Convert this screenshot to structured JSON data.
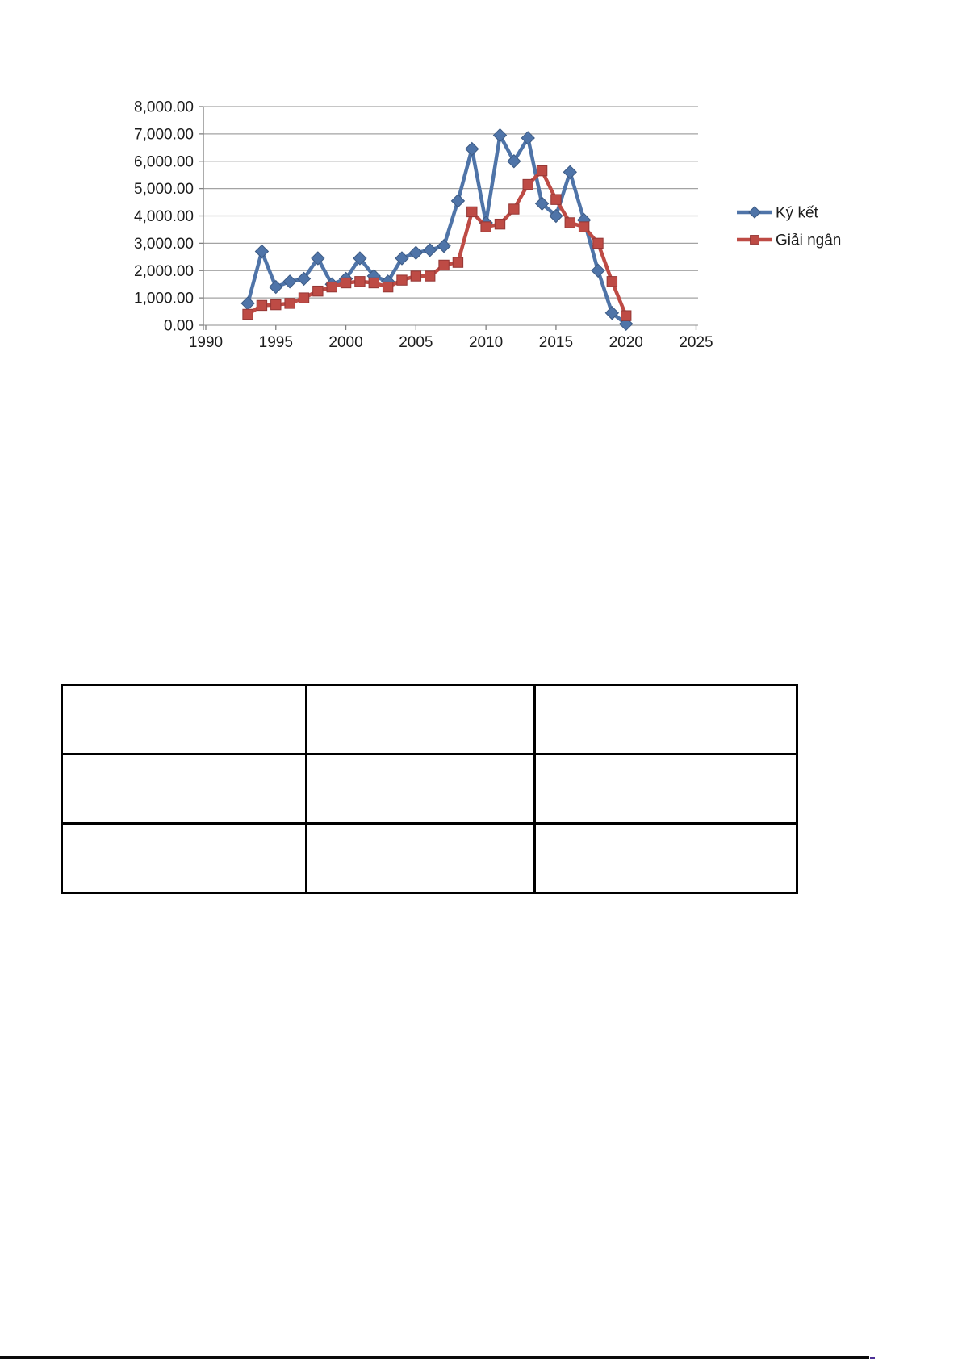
{
  "chart_data": {
    "type": "line",
    "title": "",
    "xlabel": "",
    "ylabel": "",
    "xlim": [
      1990,
      2025
    ],
    "ylim": [
      0,
      8000
    ],
    "grid": true,
    "legend_position": "right",
    "x_ticks": [
      1990,
      1995,
      2000,
      2005,
      2010,
      2015,
      2020,
      2025
    ],
    "y_tick_labels": [
      "8,000.00",
      "7,000.00",
      "6,000.00",
      "5,000.00",
      "4,000.00",
      "3,000.00",
      "2,000.00",
      "1,000.00",
      "0.00"
    ],
    "x_years": [
      1993,
      1994,
      1995,
      1996,
      1997,
      1998,
      1999,
      2000,
      2001,
      2002,
      2003,
      2004,
      2005,
      2006,
      2007,
      2008,
      2009,
      2010,
      2011,
      2012,
      2013,
      2014,
      2015,
      2016,
      2017,
      2018,
      2019,
      2020
    ],
    "series": [
      {
        "name": "Ký kết",
        "marker": "diamond",
        "color": "#4f74a8",
        "edge": "#3c5a84",
        "values": [
          800,
          2700,
          1400,
          1600,
          1700,
          2450,
          1500,
          1700,
          2450,
          1800,
          1600,
          2450,
          2650,
          2750,
          2900,
          4550,
          6450,
          3750,
          6950,
          6000,
          6850,
          4450,
          4000,
          5600,
          3850,
          2000,
          450,
          50
        ]
      },
      {
        "name": "Giải ngân",
        "marker": "square",
        "color": "#be4b45",
        "edge": "#943634",
        "values": [
          400,
          725,
          750,
          800,
          1000,
          1250,
          1400,
          1550,
          1600,
          1550,
          1400,
          1650,
          1800,
          1800,
          2200,
          2300,
          4150,
          3600,
          3700,
          4250,
          5150,
          5650,
          4600,
          3750,
          3600,
          3000,
          1600,
          350
        ]
      }
    ],
    "grid_color": "#a3a3a3",
    "axis_color": "#7f7f7f",
    "text_color": "#1c1c1c"
  },
  "table": {
    "border_color": "#000000",
    "cells": [
      [
        "",
        "",
        ""
      ],
      [
        "",
        "",
        ""
      ],
      [
        "",
        "",
        ""
      ]
    ]
  },
  "bottom_bar": {
    "color": "#0a0a0a",
    "accent_color": "#4d3096"
  }
}
